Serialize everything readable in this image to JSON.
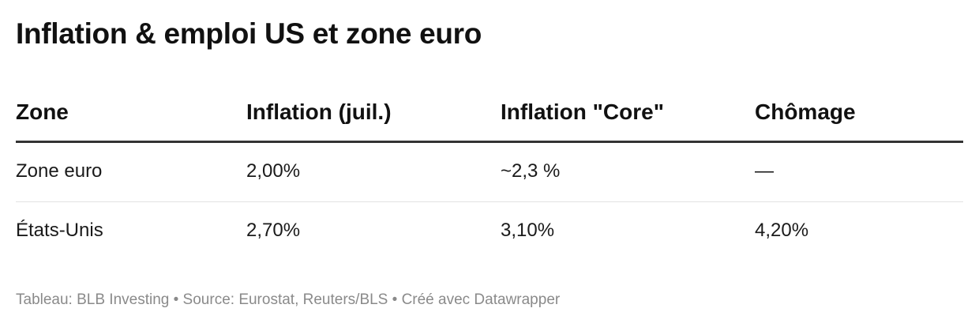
{
  "title": "Inflation & emploi US et zone euro",
  "footer": "Tableau: BLB Investing • Source: Eurostat, Reuters/BLS • Créé avec Datawrapper",
  "chart_data": {
    "type": "table",
    "title": "Inflation & emploi US et zone euro",
    "columns": [
      "Zone",
      "Inflation (juil.)",
      "Inflation \"Core\"",
      "Chômage"
    ],
    "rows": [
      [
        "Zone euro",
        "2,00%",
        "~2,3 %",
        "—"
      ],
      [
        "États-Unis",
        "2,70%",
        "3,10%",
        "4,20%"
      ]
    ],
    "source": "Tableau: BLB Investing • Source: Eurostat, Reuters/BLS • Créé avec Datawrapper"
  }
}
